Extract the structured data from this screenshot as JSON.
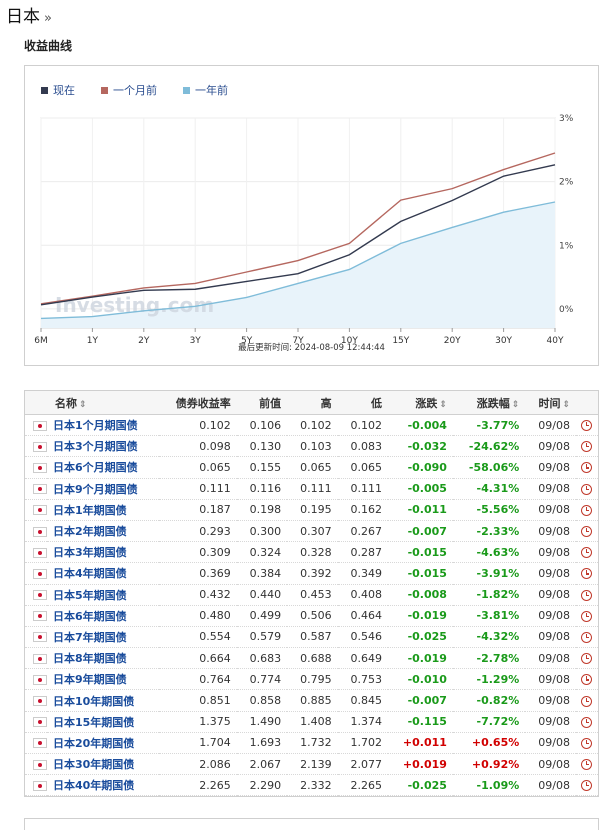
{
  "page": {
    "title": "日本",
    "title_suffix": "»",
    "section_title": "收益曲线"
  },
  "chart_data": {
    "type": "line",
    "x": [
      "6M",
      "1Y",
      "2Y",
      "3Y",
      "5Y",
      "7Y",
      "10Y",
      "15Y",
      "20Y",
      "30Y",
      "40Y"
    ],
    "y_ticks": [
      "0%",
      "1%",
      "2%",
      "3%"
    ],
    "ylim": [
      -0.3,
      3.0
    ],
    "series": [
      {
        "name": "现在",
        "color": "#333a4f",
        "values": [
          0.065,
          0.187,
          0.293,
          0.309,
          0.432,
          0.554,
          0.851,
          1.375,
          1.704,
          2.086,
          2.265
        ]
      },
      {
        "name": "一个月前",
        "color": "#b5675f",
        "values": [
          0.08,
          0.2,
          0.33,
          0.4,
          0.58,
          0.76,
          1.03,
          1.71,
          1.89,
          2.19,
          2.45
        ]
      },
      {
        "name": "一年前",
        "color": "#7fbcd9",
        "values": [
          -0.15,
          -0.12,
          -0.03,
          0.04,
          0.18,
          0.4,
          0.62,
          1.03,
          1.28,
          1.52,
          1.68
        ]
      }
    ],
    "watermark": "Investing.com",
    "updated": "最后更新时间: 2024-08-09 12:44:44"
  },
  "table": {
    "headers": [
      "名称",
      "债券收益率",
      "前值",
      "高",
      "低",
      "涨跌",
      "涨跌幅",
      "时间"
    ],
    "rows": [
      {
        "name": "日本1个月期国债",
        "yield": "0.102",
        "prev": "0.106",
        "high": "0.102",
        "low": "0.102",
        "chg": "-0.004",
        "pct": "-3.77%",
        "time": "09/08"
      },
      {
        "name": "日本3个月期国债",
        "yield": "0.098",
        "prev": "0.130",
        "high": "0.103",
        "low": "0.083",
        "chg": "-0.032",
        "pct": "-24.62%",
        "time": "09/08"
      },
      {
        "name": "日本6个月期国债",
        "yield": "0.065",
        "prev": "0.155",
        "high": "0.065",
        "low": "0.065",
        "chg": "-0.090",
        "pct": "-58.06%",
        "time": "09/08"
      },
      {
        "name": "日本9个月期国债",
        "yield": "0.111",
        "prev": "0.116",
        "high": "0.111",
        "low": "0.111",
        "chg": "-0.005",
        "pct": "-4.31%",
        "time": "09/08"
      },
      {
        "name": "日本1年期国债",
        "yield": "0.187",
        "prev": "0.198",
        "high": "0.195",
        "low": "0.162",
        "chg": "-0.011",
        "pct": "-5.56%",
        "time": "09/08"
      },
      {
        "name": "日本2年期国债",
        "yield": "0.293",
        "prev": "0.300",
        "high": "0.307",
        "low": "0.267",
        "chg": "-0.007",
        "pct": "-2.33%",
        "time": "09/08"
      },
      {
        "name": "日本3年期国债",
        "yield": "0.309",
        "prev": "0.324",
        "high": "0.328",
        "low": "0.287",
        "chg": "-0.015",
        "pct": "-4.63%",
        "time": "09/08"
      },
      {
        "name": "日本4年期国债",
        "yield": "0.369",
        "prev": "0.384",
        "high": "0.392",
        "low": "0.349",
        "chg": "-0.015",
        "pct": "-3.91%",
        "time": "09/08"
      },
      {
        "name": "日本5年期国债",
        "yield": "0.432",
        "prev": "0.440",
        "high": "0.453",
        "low": "0.408",
        "chg": "-0.008",
        "pct": "-1.82%",
        "time": "09/08"
      },
      {
        "name": "日本6年期国债",
        "yield": "0.480",
        "prev": "0.499",
        "high": "0.506",
        "low": "0.464",
        "chg": "-0.019",
        "pct": "-3.81%",
        "time": "09/08"
      },
      {
        "name": "日本7年期国债",
        "yield": "0.554",
        "prev": "0.579",
        "high": "0.587",
        "low": "0.546",
        "chg": "-0.025",
        "pct": "-4.32%",
        "time": "09/08"
      },
      {
        "name": "日本8年期国债",
        "yield": "0.664",
        "prev": "0.683",
        "high": "0.688",
        "low": "0.649",
        "chg": "-0.019",
        "pct": "-2.78%",
        "time": "09/08"
      },
      {
        "name": "日本9年期国债",
        "yield": "0.764",
        "prev": "0.774",
        "high": "0.795",
        "low": "0.753",
        "chg": "-0.010",
        "pct": "-1.29%",
        "time": "09/08"
      },
      {
        "name": "日本10年期国债",
        "yield": "0.851",
        "prev": "0.858",
        "high": "0.885",
        "low": "0.845",
        "chg": "-0.007",
        "pct": "-0.82%",
        "time": "09/08"
      },
      {
        "name": "日本15年期国债",
        "yield": "1.375",
        "prev": "1.490",
        "high": "1.408",
        "low": "1.374",
        "chg": "-0.115",
        "pct": "-7.72%",
        "time": "09/08"
      },
      {
        "name": "日本20年期国债",
        "yield": "1.704",
        "prev": "1.693",
        "high": "1.732",
        "low": "1.702",
        "chg": "+0.011",
        "pct": "+0.65%",
        "time": "09/08"
      },
      {
        "name": "日本30年期国债",
        "yield": "2.086",
        "prev": "2.067",
        "high": "2.139",
        "low": "2.077",
        "chg": "+0.019",
        "pct": "+0.92%",
        "time": "09/08"
      },
      {
        "name": "日本40年期国债",
        "yield": "2.265",
        "prev": "2.290",
        "high": "2.332",
        "low": "2.265",
        "chg": "-0.025",
        "pct": "-1.09%",
        "time": "09/08"
      }
    ]
  }
}
